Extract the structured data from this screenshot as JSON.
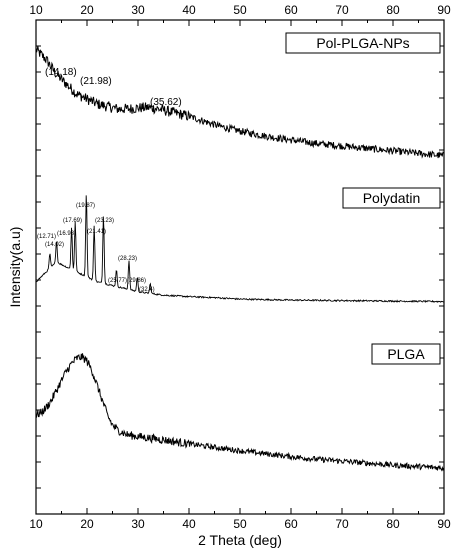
{
  "chart_data": {
    "type": "line",
    "xlabel": "2 Theta (deg)",
    "ylabel": "Intensity(a.u)",
    "xlim": [
      10,
      90
    ],
    "x_ticks": [
      "10",
      "20",
      "30",
      "40",
      "50",
      "60",
      "70",
      "80",
      "90"
    ],
    "grid": false,
    "series": [
      {
        "name": "Pol-PLGA-NPs",
        "x": [
          10,
          12,
          14,
          16,
          18,
          20,
          22,
          24,
          26,
          28,
          30,
          32,
          34,
          36,
          38,
          40,
          43,
          46,
          50,
          55,
          60,
          65,
          70,
          75,
          80,
          85,
          90
        ],
        "y": [
          0.94,
          0.92,
          0.89,
          0.87,
          0.85,
          0.84,
          0.83,
          0.825,
          0.82,
          0.82,
          0.822,
          0.823,
          0.82,
          0.815,
          0.81,
          0.805,
          0.795,
          0.785,
          0.775,
          0.765,
          0.757,
          0.75,
          0.745,
          0.74,
          0.735,
          0.73,
          0.725
        ],
        "annotations": [
          {
            "x": 14.18,
            "label": "(14.18)"
          },
          {
            "x": 21.98,
            "label": "(21.98)"
          },
          {
            "x": 35.62,
            "label": "(35.62)"
          }
        ]
      },
      {
        "name": "Polydatin",
        "x": [
          10,
          11,
          12,
          13,
          14,
          15,
          16,
          18,
          20,
          22,
          24,
          26,
          28,
          30,
          32,
          35,
          40,
          45,
          50,
          60,
          70,
          80,
          90
        ],
        "y": [
          0.47,
          0.48,
          0.49,
          0.5,
          0.51,
          0.505,
          0.5,
          0.49,
          0.48,
          0.47,
          0.465,
          0.46,
          0.455,
          0.45,
          0.447,
          0.443,
          0.44,
          0.438,
          0.435,
          0.433,
          0.432,
          0.431,
          0.43
        ],
        "annotations": [
          {
            "x": 12.71,
            "label": "(12.71)"
          },
          {
            "x": 14.02,
            "label": "(14.02)"
          },
          {
            "x": 16.98,
            "label": "(16.98)"
          },
          {
            "x": 17.69,
            "label": "(17.69)"
          },
          {
            "x": 19.87,
            "label": "(19.87)"
          },
          {
            "x": 21.41,
            "label": "(21.41)"
          },
          {
            "x": 23.23,
            "label": "(23.23)"
          },
          {
            "x": 25.77,
            "label": "(25.77)"
          },
          {
            "x": 28.23,
            "label": "(28.23)"
          },
          {
            "x": 29.86,
            "label": "(29.86)"
          },
          {
            "x": 32.4,
            "label": "(32.4)"
          }
        ]
      },
      {
        "name": "PLGA",
        "x": [
          10,
          11,
          12,
          13,
          14,
          15,
          16,
          17,
          18,
          19,
          20,
          21,
          22,
          23,
          24,
          25,
          26,
          27,
          28,
          30,
          35,
          40,
          45,
          50,
          55,
          60,
          65,
          70,
          75,
          80,
          85,
          90
        ],
        "y": [
          0.2,
          0.205,
          0.215,
          0.23,
          0.25,
          0.27,
          0.29,
          0.305,
          0.315,
          0.318,
          0.31,
          0.29,
          0.26,
          0.23,
          0.2,
          0.18,
          0.17,
          0.165,
          0.16,
          0.157,
          0.15,
          0.142,
          0.135,
          0.128,
          0.122,
          0.116,
          0.111,
          0.107,
          0.103,
          0.099,
          0.096,
          0.093
        ]
      }
    ]
  }
}
